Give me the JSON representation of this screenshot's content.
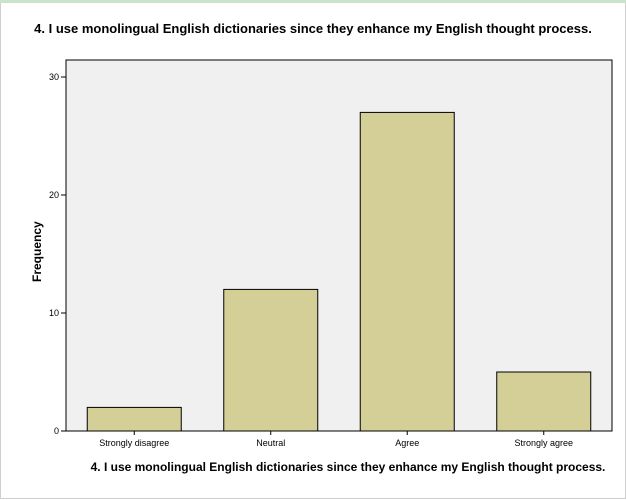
{
  "chart_data": {
    "type": "bar",
    "title": "4. I use monolingual English dictionaries since they enhance my English thought process.",
    "xlabel": "4. I use monolingual English dictionaries since they enhance my English thought process.",
    "ylabel": "Frequency",
    "categories": [
      "Strongly disagree",
      "Neutral",
      "Agree",
      "Strongly agree"
    ],
    "values": [
      2,
      12,
      27,
      5
    ],
    "ylim": [
      0,
      30
    ],
    "yticks": [
      "0",
      "10",
      "20",
      "30"
    ],
    "grid": false,
    "colors": {
      "bar_fill": "#d4ce97",
      "bar_stroke": "#000000",
      "plot_bg": "#f0f0f0",
      "accent": "#c9e4c9"
    }
  }
}
